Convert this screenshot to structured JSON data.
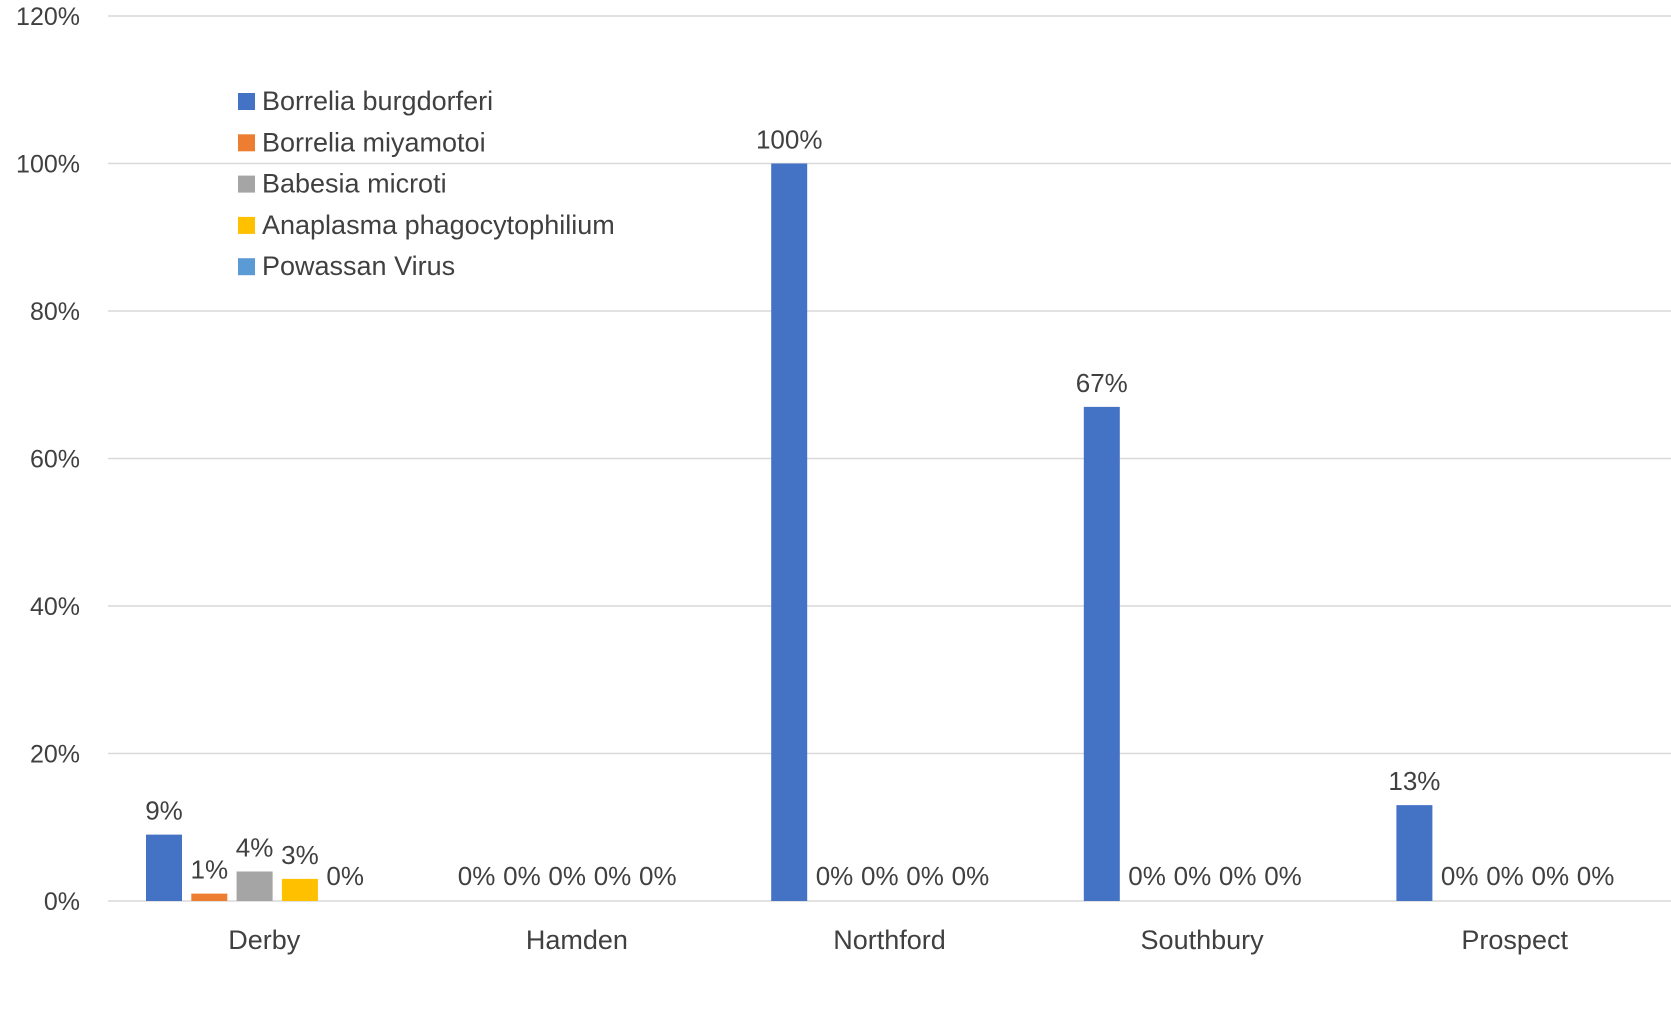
{
  "chart_data": {
    "type": "bar",
    "title": "",
    "xlabel": "",
    "ylabel": "",
    "categories": [
      "Derby",
      "Hamden",
      "Northford",
      "Southbury",
      "Prospect"
    ],
    "series": [
      {
        "name": "Borrelia burgdorferi",
        "color": "#4472c4",
        "values": [
          9,
          0,
          100,
          67,
          13
        ],
        "labels": [
          "9%",
          "0%",
          "100%",
          "67%",
          "13%"
        ]
      },
      {
        "name": "Borrelia miyamotoi",
        "color": "#ed7d31",
        "values": [
          1,
          0,
          0,
          0,
          0
        ],
        "labels": [
          "1%",
          "0%",
          "0%",
          "0%",
          "0%"
        ]
      },
      {
        "name": "Babesia microti",
        "color": "#a5a5a5",
        "values": [
          4,
          0,
          0,
          0,
          0
        ],
        "labels": [
          "4%",
          "0%",
          "0%",
          "0%",
          "0%"
        ]
      },
      {
        "name": "Anaplasma phagocytophilium",
        "color": "#ffc000",
        "values": [
          3,
          0,
          0,
          0,
          0
        ],
        "labels": [
          "3%",
          "0%",
          "0%",
          "0%",
          "0%"
        ]
      },
      {
        "name": "Powassan Virus",
        "color": "#5b9bd5",
        "values": [
          0,
          0,
          0,
          0,
          0
        ],
        "labels": [
          "0%",
          "0%",
          "0%",
          "0%",
          "0%"
        ]
      }
    ],
    "y_ticks": [
      "0%",
      "20%",
      "40%",
      "60%",
      "80%",
      "100%",
      "120%"
    ],
    "ylim": [
      0,
      120
    ],
    "grid": true,
    "legend_position": "top-left"
  }
}
